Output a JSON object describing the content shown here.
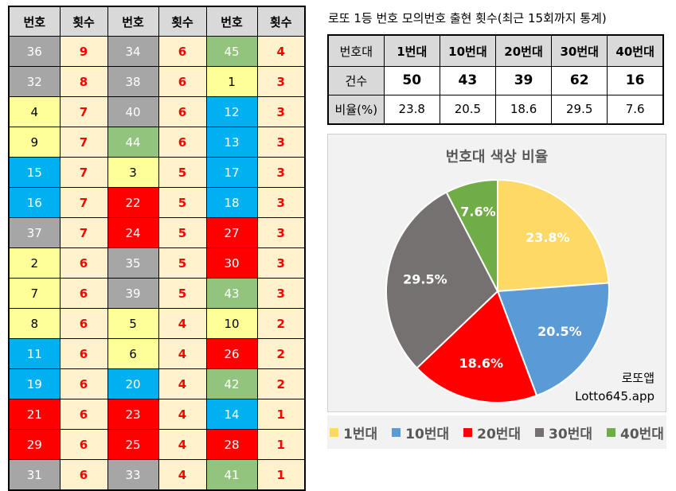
{
  "table": {
    "headers": [
      "번호",
      "횟수",
      "번호",
      "횟수",
      "번호",
      "횟수"
    ],
    "rows": [
      [
        {
          "num": "36",
          "cnt": "9",
          "color": "#a6a6a6",
          "tc": "#ffffff"
        },
        {
          "num": "34",
          "cnt": "6",
          "color": "#a6a6a6",
          "tc": "#ffffff"
        },
        {
          "num": "45",
          "cnt": "4",
          "color": "#92c47d",
          "tc": "#ffffff"
        }
      ],
      [
        {
          "num": "32",
          "cnt": "8",
          "color": "#a6a6a6",
          "tc": "#ffffff"
        },
        {
          "num": "38",
          "cnt": "6",
          "color": "#a6a6a6",
          "tc": "#ffffff"
        },
        {
          "num": "1",
          "cnt": "3",
          "color": "#ffff99",
          "tc": "#000000"
        }
      ],
      [
        {
          "num": "4",
          "cnt": "7",
          "color": "#ffff99",
          "tc": "#000000"
        },
        {
          "num": "40",
          "cnt": "6",
          "color": "#a6a6a6",
          "tc": "#ffffff"
        },
        {
          "num": "12",
          "cnt": "3",
          "color": "#00b0f0",
          "tc": "#ffffff"
        }
      ],
      [
        {
          "num": "9",
          "cnt": "7",
          "color": "#ffff99",
          "tc": "#000000"
        },
        {
          "num": "44",
          "cnt": "6",
          "color": "#92c47d",
          "tc": "#ffffff"
        },
        {
          "num": "13",
          "cnt": "3",
          "color": "#00b0f0",
          "tc": "#ffffff"
        }
      ],
      [
        {
          "num": "15",
          "cnt": "7",
          "color": "#00b0f0",
          "tc": "#ffffff"
        },
        {
          "num": "3",
          "cnt": "5",
          "color": "#ffff99",
          "tc": "#000000"
        },
        {
          "num": "17",
          "cnt": "3",
          "color": "#00b0f0",
          "tc": "#ffffff"
        }
      ],
      [
        {
          "num": "16",
          "cnt": "7",
          "color": "#00b0f0",
          "tc": "#ffffff"
        },
        {
          "num": "22",
          "cnt": "5",
          "color": "#ff0000",
          "tc": "#ffffff"
        },
        {
          "num": "18",
          "cnt": "3",
          "color": "#00b0f0",
          "tc": "#ffffff"
        }
      ],
      [
        {
          "num": "37",
          "cnt": "7",
          "color": "#a6a6a6",
          "tc": "#ffffff"
        },
        {
          "num": "24",
          "cnt": "5",
          "color": "#ff0000",
          "tc": "#ffffff"
        },
        {
          "num": "27",
          "cnt": "3",
          "color": "#ff0000",
          "tc": "#ffffff"
        }
      ],
      [
        {
          "num": "2",
          "cnt": "6",
          "color": "#ffff99",
          "tc": "#000000"
        },
        {
          "num": "35",
          "cnt": "5",
          "color": "#a6a6a6",
          "tc": "#ffffff"
        },
        {
          "num": "30",
          "cnt": "3",
          "color": "#ff0000",
          "tc": "#ffffff"
        }
      ],
      [
        {
          "num": "7",
          "cnt": "6",
          "color": "#ffff99",
          "tc": "#000000"
        },
        {
          "num": "39",
          "cnt": "5",
          "color": "#a6a6a6",
          "tc": "#ffffff"
        },
        {
          "num": "43",
          "cnt": "3",
          "color": "#92c47d",
          "tc": "#ffffff"
        }
      ],
      [
        {
          "num": "8",
          "cnt": "6",
          "color": "#ffff99",
          "tc": "#000000"
        },
        {
          "num": "5",
          "cnt": "4",
          "color": "#ffff99",
          "tc": "#000000"
        },
        {
          "num": "10",
          "cnt": "2",
          "color": "#ffff99",
          "tc": "#000000"
        }
      ],
      [
        {
          "num": "11",
          "cnt": "6",
          "color": "#00b0f0",
          "tc": "#ffffff"
        },
        {
          "num": "6",
          "cnt": "4",
          "color": "#ffff99",
          "tc": "#000000"
        },
        {
          "num": "26",
          "cnt": "2",
          "color": "#ff0000",
          "tc": "#ffffff"
        }
      ],
      [
        {
          "num": "19",
          "cnt": "6",
          "color": "#00b0f0",
          "tc": "#ffffff"
        },
        {
          "num": "20",
          "cnt": "4",
          "color": "#00b0f0",
          "tc": "#ffffff"
        },
        {
          "num": "42",
          "cnt": "2",
          "color": "#92c47d",
          "tc": "#ffffff"
        }
      ],
      [
        {
          "num": "21",
          "cnt": "6",
          "color": "#ff0000",
          "tc": "#ffffff"
        },
        {
          "num": "23",
          "cnt": "4",
          "color": "#ff0000",
          "tc": "#ffffff"
        },
        {
          "num": "14",
          "cnt": "1",
          "color": "#00b0f0",
          "tc": "#ffffff"
        }
      ],
      [
        {
          "num": "29",
          "cnt": "6",
          "color": "#ff0000",
          "tc": "#ffffff"
        },
        {
          "num": "25",
          "cnt": "4",
          "color": "#ff0000",
          "tc": "#ffffff"
        },
        {
          "num": "28",
          "cnt": "1",
          "color": "#ff0000",
          "tc": "#ffffff"
        }
      ],
      [
        {
          "num": "31",
          "cnt": "6",
          "color": "#a6a6a6",
          "tc": "#ffffff"
        },
        {
          "num": "33",
          "cnt": "4",
          "color": "#a6a6a6",
          "tc": "#ffffff"
        },
        {
          "num": "41",
          "cnt": "1",
          "color": "#92c47d",
          "tc": "#ffffff"
        }
      ]
    ]
  },
  "stats": {
    "title": "로또 1등 번호 모의번호 출현 횟수(최근 15회까지 통계)",
    "header_label": "번호대",
    "columns": [
      "1번대",
      "10번대",
      "20번대",
      "30번대",
      "40번대"
    ],
    "count_label": "건수",
    "counts": [
      "50",
      "43",
      "39",
      "62",
      "16"
    ],
    "ratio_label": "비율(%)",
    "ratios": [
      "23.8",
      "20.5",
      "18.6",
      "29.5",
      "7.6"
    ]
  },
  "chart_data": {
    "type": "pie",
    "title": "번호대 색상 비율",
    "categories": [
      "1번대",
      "10번대",
      "20번대",
      "30번대",
      "40번대"
    ],
    "values": [
      23.8,
      20.5,
      18.6,
      29.5,
      7.6
    ],
    "labels": [
      "23.8%",
      "20.5%",
      "18.6%",
      "29.5%",
      "7.6%"
    ],
    "colors": [
      "#ffd966",
      "#5b9bd5",
      "#ff0000",
      "#767171",
      "#70ad47"
    ],
    "legend_position": "bottom"
  },
  "watermark": {
    "line1": "로또앱",
    "line2": "Lotto645.app"
  }
}
